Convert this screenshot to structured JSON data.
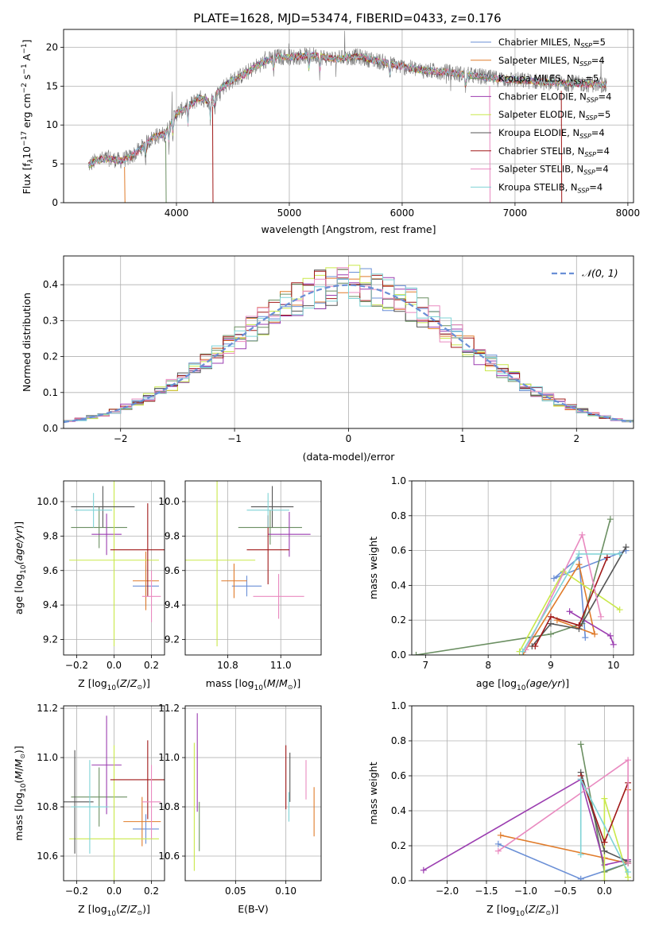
{
  "figure": {
    "title": "PLATE=1628, MJD=53474, FIBERID=0433, z=0.176",
    "series_colors": [
      "#6a8fd6",
      "#e07b2a",
      "#6b8f62",
      "#9b3db0",
      "#c9e84a",
      "#555555",
      "#a01818",
      "#e98ac0",
      "#7fd3d6"
    ],
    "legend": [
      {
        "label": "Chabrier MILES, N",
        "sub": "SSP",
        "suffix": "=5"
      },
      {
        "label": "Salpeter MILES, N",
        "sub": "SSP",
        "suffix": "=4"
      },
      {
        "label": "Kroupa MILES, N",
        "sub": "SSP",
        "suffix": "=5"
      },
      {
        "label": "Chabrier ELODIE, N",
        "sub": "SSP",
        "suffix": "=4"
      },
      {
        "label": "Salpeter ELODIE, N",
        "sub": "SSP",
        "suffix": "=5"
      },
      {
        "label": "Kroupa ELODIE, N",
        "sub": "SSP",
        "suffix": "=4"
      },
      {
        "label": "Chabrier STELIB, N",
        "sub": "SSP",
        "suffix": "=4"
      },
      {
        "label": "Salpeter STELIB, N",
        "sub": "SSP",
        "suffix": "=4"
      },
      {
        "label": "Kroupa STELIB, N",
        "sub": "SSP",
        "suffix": "=4"
      }
    ]
  },
  "chart_data": [
    {
      "id": "spectrum",
      "type": "line",
      "xlabel": "wavelength [Angstrom, rest frame]",
      "ylabel": "Flux [f",
      "ylabel_parts": [
        "Flux [f",
        "λ",
        "10",
        "−17",
        " erg cm",
        "−2",
        " s",
        "−1",
        " A",
        "−1",
        "]"
      ],
      "xlim": [
        3000,
        8050
      ],
      "ylim": [
        0,
        22.3
      ],
      "xticks": [
        4000,
        5000,
        6000,
        7000,
        8000
      ],
      "yticks": [
        0,
        5,
        10,
        15,
        20
      ],
      "x": [
        3220,
        3300,
        3400,
        3500,
        3600,
        3700,
        3800,
        3900,
        4000,
        4100,
        4200,
        4300,
        4400,
        4500,
        4600,
        4700,
        4800,
        4900,
        5000,
        5200,
        5400,
        5600,
        5800,
        6000,
        6200,
        6400,
        6600,
        6800,
        7000,
        7200,
        7400,
        7600,
        7800
      ],
      "y": [
        4.8,
        5.5,
        5.7,
        5.4,
        5.9,
        7.2,
        8.5,
        8.8,
        11.5,
        12.3,
        13.5,
        13.0,
        14.8,
        15.8,
        16.5,
        17.5,
        18.3,
        18.8,
        18.7,
        19.0,
        18.5,
        18.8,
        18.2,
        17.5,
        17.0,
        16.8,
        16.4,
        16.0,
        15.8,
        15.6,
        15.4,
        15.3,
        15.2
      ]
    },
    {
      "id": "residuals",
      "type": "line",
      "xlabel": "(data-model)/error",
      "ylabel": "Normed distribution",
      "xlim": [
        -2.5,
        2.5
      ],
      "ylim": [
        0,
        0.48
      ],
      "xticks": [
        -2,
        -1,
        0,
        1,
        2
      ],
      "yticks": [
        0.0,
        0.1,
        0.2,
        0.3,
        0.4
      ],
      "series": [
        {
          "name": "𝒩(0, 1)",
          "mean": 0,
          "sigma": 1
        }
      ]
    },
    {
      "id": "age_vs_Z",
      "type": "scatter",
      "xlabel": "Z [log",
      "ylabel": "age  [log",
      "xlim": [
        -0.27,
        0.27
      ],
      "ylim": [
        9.11,
        10.12
      ],
      "xticks": [
        -0.2,
        0.0,
        0.2
      ],
      "yticks": [
        9.2,
        9.4,
        9.6,
        9.8,
        10.0
      ],
      "points": [
        {
          "x": 0.17,
          "y": 9.51,
          "xerr": 0.07,
          "yerr": 0.12,
          "c": 0
        },
        {
          "x": 0.17,
          "y": 9.54,
          "xerr": 0.07,
          "yerr": 0.17,
          "c": 1
        },
        {
          "x": -0.08,
          "y": 9.85,
          "xerr": 0.15,
          "yerr": 0.12,
          "c": 2
        },
        {
          "x": -0.04,
          "y": 9.81,
          "xerr": 0.08,
          "yerr": 0.12,
          "c": 3
        },
        {
          "x": 0.0,
          "y": 9.66,
          "xerr": 0.24,
          "yerr": 0.5,
          "c": 4
        },
        {
          "x": -0.06,
          "y": 9.97,
          "xerr": 0.17,
          "yerr": 0.12,
          "c": 5
        },
        {
          "x": 0.18,
          "y": 9.72,
          "xerr": 0.2,
          "yerr": 0.27,
          "c": 6
        },
        {
          "x": 0.2,
          "y": 9.45,
          "xerr": 0.05,
          "yerr": 0.15,
          "c": 7
        },
        {
          "x": -0.11,
          "y": 9.95,
          "xerr": 0.1,
          "yerr": 0.1,
          "c": 8
        }
      ]
    },
    {
      "id": "age_vs_mass",
      "type": "scatter",
      "xlabel": "mass [log",
      "ylabel": "",
      "xlim": [
        10.55,
        11.19
      ],
      "ylim": [
        9.11,
        10.12
      ],
      "xticks": [
        10.75,
        11.0
      ],
      "yticks": [
        9.2,
        9.4,
        9.6,
        9.8,
        10.0
      ],
      "points": [
        {
          "x": 10.84,
          "y": 9.51,
          "xerr": 0.07,
          "yerr": 0.06,
          "c": 0
        },
        {
          "x": 10.78,
          "y": 9.54,
          "xerr": 0.06,
          "yerr": 0.1,
          "c": 1
        },
        {
          "x": 10.95,
          "y": 9.85,
          "xerr": 0.15,
          "yerr": 0.1,
          "c": 2
        },
        {
          "x": 11.04,
          "y": 9.81,
          "xerr": 0.1,
          "yerr": 0.13,
          "c": 3
        },
        {
          "x": 10.7,
          "y": 9.66,
          "xerr": 0.18,
          "yerr": 0.5,
          "c": 4
        },
        {
          "x": 10.96,
          "y": 9.97,
          "xerr": 0.1,
          "yerr": 0.12,
          "c": 5
        },
        {
          "x": 10.94,
          "y": 9.72,
          "xerr": 0.1,
          "yerr": 0.2,
          "c": 6
        },
        {
          "x": 10.99,
          "y": 9.45,
          "xerr": 0.12,
          "yerr": 0.13,
          "c": 7
        },
        {
          "x": 10.94,
          "y": 9.95,
          "xerr": 0.1,
          "yerr": 0.1,
          "c": 8
        }
      ]
    },
    {
      "id": "weight_vs_age",
      "type": "line",
      "xlabel": "age  [log",
      "ylabel": "mass weight",
      "xlim": [
        6.78,
        10.32
      ],
      "ylim": [
        0,
        1.0
      ],
      "xticks": [
        7,
        8,
        9,
        10
      ],
      "yticks": [
        0.0,
        0.2,
        0.4,
        0.6,
        0.8,
        1.0
      ],
      "series": [
        {
          "c": 0,
          "x": [
            9.55,
            9.45,
            9.05,
            10.2
          ],
          "y": [
            0.1,
            0.56,
            0.44,
            0.6
          ]
        },
        {
          "c": 1,
          "x": [
            8.55,
            9.45,
            9.7,
            9.1
          ],
          "y": [
            0.0,
            0.52,
            0.12,
            0.2
          ]
        },
        {
          "c": 2,
          "x": [
            6.85,
            9.0,
            9.5,
            9.95
          ],
          "y": [
            0.0,
            0.12,
            0.18,
            0.78
          ]
        },
        {
          "c": 3,
          "x": [
            9.3,
            9.95,
            10.0
          ],
          "y": [
            0.25,
            0.11,
            0.06
          ]
        },
        {
          "c": 4,
          "x": [
            8.5,
            9.2,
            10.1
          ],
          "y": [
            0.02,
            0.48,
            0.26
          ]
        },
        {
          "c": 5,
          "x": [
            8.7,
            9.0,
            9.45,
            10.2
          ],
          "y": [
            0.05,
            0.18,
            0.15,
            0.62
          ]
        },
        {
          "c": 6,
          "x": [
            8.75,
            9.0,
            9.45,
            9.9
          ],
          "y": [
            0.05,
            0.22,
            0.17,
            0.56
          ]
        },
        {
          "c": 7,
          "x": [
            8.6,
            9.5,
            9.8
          ],
          "y": [
            0.03,
            0.69,
            0.22
          ]
        },
        {
          "c": 8,
          "x": [
            8.55,
            9.45,
            10.1
          ],
          "y": [
            0.02,
            0.58,
            0.58
          ]
        }
      ]
    },
    {
      "id": "mass_vs_Z",
      "type": "scatter",
      "xlabel": "Z [log",
      "ylabel": "mass [log",
      "xlim": [
        -0.27,
        0.27
      ],
      "ylim": [
        10.5,
        11.21
      ],
      "xticks": [
        -0.2,
        0.0,
        0.2
      ],
      "yticks": [
        10.6,
        10.8,
        11.0,
        11.2
      ],
      "points": [
        {
          "x": 0.17,
          "y": 10.71,
          "xerr": 0.07,
          "yerr": 0.06,
          "c": 0
        },
        {
          "x": 0.15,
          "y": 10.74,
          "xerr": 0.1,
          "yerr": 0.1,
          "c": 1
        },
        {
          "x": -0.08,
          "y": 10.84,
          "xerr": 0.15,
          "yerr": 0.12,
          "c": 2
        },
        {
          "x": -0.04,
          "y": 10.97,
          "xerr": 0.08,
          "yerr": 0.2,
          "c": 3
        },
        {
          "x": 0.0,
          "y": 10.67,
          "xerr": 0.24,
          "yerr": 0.38,
          "c": 4
        },
        {
          "x": -0.21,
          "y": 10.82,
          "xerr": 0.1,
          "yerr": 0.21,
          "c": 5
        },
        {
          "x": 0.18,
          "y": 10.91,
          "xerr": 0.2,
          "yerr": 0.16,
          "c": 6
        },
        {
          "x": 0.2,
          "y": 10.82,
          "xerr": 0.05,
          "yerr": 0.15,
          "c": 7
        },
        {
          "x": -0.13,
          "y": 10.8,
          "xerr": 0.1,
          "yerr": 0.19,
          "c": 8
        }
      ]
    },
    {
      "id": "mass_vs_EBV",
      "type": "scatter",
      "xlabel": "E(B-V)",
      "ylabel": "",
      "xlim": [
        0.0,
        0.135
      ],
      "ylim": [
        10.5,
        11.21
      ],
      "xticks": [
        0.05,
        0.1
      ],
      "yticks": [
        10.6,
        10.8,
        11.0,
        11.2
      ],
      "points": [
        {
          "x": 0.009,
          "y": 10.8,
          "yerr": 0.26,
          "c": 4
        },
        {
          "x": 0.012,
          "y": 10.98,
          "yerr": 0.2,
          "c": 3
        },
        {
          "x": 0.014,
          "y": 10.72,
          "yerr": 0.1,
          "c": 2
        },
        {
          "x": 0.1,
          "y": 10.92,
          "yerr": 0.13,
          "c": 6
        },
        {
          "x": 0.103,
          "y": 10.8,
          "yerr": 0.06,
          "c": 8
        },
        {
          "x": 0.104,
          "y": 10.92,
          "yerr": 0.1,
          "c": 5
        },
        {
          "x": 0.12,
          "y": 10.91,
          "yerr": 0.08,
          "c": 7
        },
        {
          "x": 0.128,
          "y": 10.78,
          "yerr": 0.1,
          "c": 1
        }
      ]
    },
    {
      "id": "weight_vs_Z",
      "type": "line",
      "xlabel": "Z [log",
      "ylabel": "mass weight",
      "xlim": [
        -2.45,
        0.37
      ],
      "ylim": [
        0,
        1.0
      ],
      "xticks": [
        -2.0,
        -1.5,
        -1.0,
        -0.5,
        0.0
      ],
      "yticks": [
        0.0,
        0.2,
        0.4,
        0.6,
        0.8,
        1.0
      ],
      "series": [
        {
          "c": 0,
          "x": [
            -1.35,
            -0.3,
            0.3
          ],
          "y": [
            0.21,
            0.01,
            0.1
          ]
        },
        {
          "c": 1,
          "x": [
            -1.32,
            0.0,
            0.3,
            0.3
          ],
          "y": [
            0.26,
            0.13,
            0.1,
            0.52
          ]
        },
        {
          "c": 2,
          "x": [
            -0.3,
            0.0,
            0.3
          ],
          "y": [
            0.78,
            0.05,
            0.1
          ]
        },
        {
          "c": 3,
          "x": [
            -2.3,
            -0.3,
            0.0,
            0.3
          ],
          "y": [
            0.06,
            0.58,
            0.09,
            0.12
          ]
        },
        {
          "c": 4,
          "x": [
            0.0,
            0.0,
            0.3
          ],
          "y": [
            0.0,
            0.47,
            0.02
          ]
        },
        {
          "c": 5,
          "x": [
            -0.3,
            0.0,
            0.3
          ],
          "y": [
            0.62,
            0.17,
            0.11
          ]
        },
        {
          "c": 6,
          "x": [
            -0.3,
            0.0,
            0.3
          ],
          "y": [
            0.6,
            0.22,
            0.56
          ]
        },
        {
          "c": 7,
          "x": [
            -1.35,
            0.3,
            0.3
          ],
          "y": [
            0.17,
            0.69,
            0.1
          ]
        },
        {
          "c": 8,
          "x": [
            -0.3,
            -0.3,
            0.3
          ],
          "y": [
            0.15,
            0.58,
            0.05
          ]
        }
      ]
    }
  ]
}
